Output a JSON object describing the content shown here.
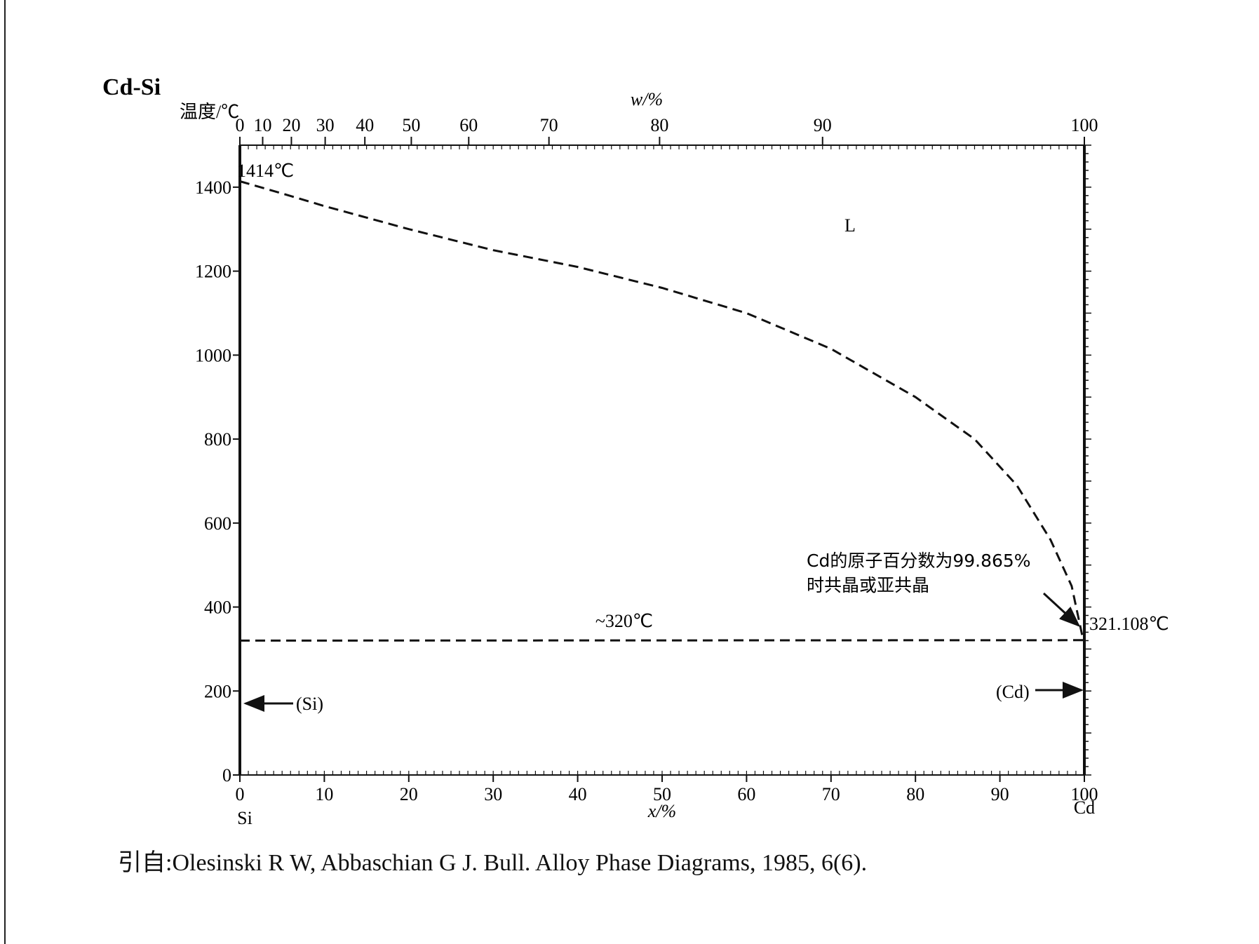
{
  "figure": {
    "system_title": "Cd-Si",
    "citation": "引自:Olesinski R W, Abbaschian G J. Bull. Alloy Phase Diagrams, 1985, 6(6)."
  },
  "chart_data": {
    "type": "line",
    "title": "Cd-Si",
    "ylabel": "温度/℃",
    "xlabel_bottom": "x/%",
    "xlabel_top": "w/%",
    "ylim": [
      0,
      1500
    ],
    "xlim": [
      0,
      100
    ],
    "y_ticks": [
      0,
      200,
      400,
      600,
      800,
      1000,
      1200,
      1400
    ],
    "x_ticks_bottom": [
      0,
      10,
      20,
      30,
      40,
      50,
      60,
      70,
      80,
      90,
      100
    ],
    "x_ticks_top_labels": [
      "0",
      "10",
      "20",
      "30",
      "40",
      "50",
      "60",
      "70",
      "80",
      "90",
      "100"
    ],
    "x_ticks_top_at_atomic": [
      0,
      2.7,
      6.1,
      10.1,
      14.8,
      20.3,
      27.1,
      36.6,
      49.7,
      69.0,
      100
    ],
    "element_left": "Si",
    "element_right": "Cd",
    "grid": false,
    "series": [
      {
        "style": "dashed",
        "points": [
          [
            0,
            1414
          ],
          [
            5,
            1385
          ],
          [
            10,
            1355
          ],
          [
            20,
            1300
          ],
          [
            30,
            1250
          ],
          [
            40,
            1210
          ],
          [
            50,
            1160
          ],
          [
            60,
            1100
          ],
          [
            70,
            1015
          ],
          [
            80,
            900
          ],
          [
            87,
            800
          ],
          [
            92,
            690
          ],
          [
            96,
            560
          ],
          [
            98.5,
            450
          ],
          [
            99.865,
            321.108
          ]
        ]
      },
      {
        "style": "dashed",
        "points": [
          [
            0,
            320
          ],
          [
            99.865,
            321.108
          ]
        ]
      }
    ],
    "annotations": {
      "melting_si": "1414℃",
      "liquid_region": "L",
      "eutectic_line": "~320℃",
      "cd_point": "321.108℃",
      "note_line1": "Cd的原子百分数为99.865%",
      "note_line2": "时共晶或亚共晶",
      "si_phase": "(Si)",
      "cd_phase": "(Cd)"
    }
  }
}
